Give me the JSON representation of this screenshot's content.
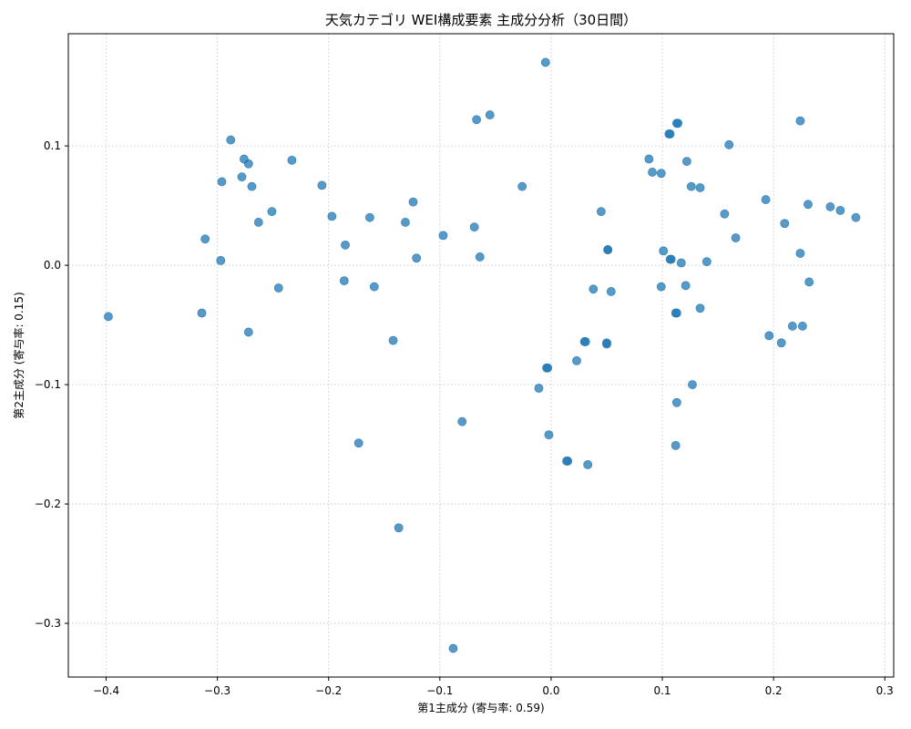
{
  "chart_data": {
    "type": "scatter",
    "title": "天気カテゴリ WEI構成要素 主成分分析（30日間）",
    "xlabel": "第1主成分 (寄与率: 0.59)",
    "ylabel": "第2主成分 (寄与率: 0.15)",
    "xlim": [
      -0.434,
      0.308
    ],
    "ylim": [
      -0.345,
      0.194
    ],
    "xticks": [
      -0.4,
      -0.3,
      -0.2,
      -0.1,
      0.0,
      0.1,
      0.2,
      0.3
    ],
    "xtick_labels": [
      "−0.4",
      "−0.3",
      "−0.2",
      "−0.1",
      "0.0",
      "0.1",
      "0.2",
      "0.3"
    ],
    "yticks": [
      -0.3,
      -0.2,
      -0.1,
      0.0,
      0.1
    ],
    "ytick_labels": [
      "−0.3",
      "−0.2",
      "−0.1",
      "0.0",
      "0.1"
    ],
    "grid": true,
    "color": "#1f77b4",
    "points": [
      [
        -0.398,
        -0.043
      ],
      [
        -0.314,
        -0.04
      ],
      [
        -0.311,
        0.022
      ],
      [
        -0.297,
        0.004
      ],
      [
        -0.296,
        0.07
      ],
      [
        -0.288,
        0.105
      ],
      [
        -0.278,
        0.074
      ],
      [
        -0.276,
        0.089
      ],
      [
        -0.272,
        0.085
      ],
      [
        -0.272,
        -0.056
      ],
      [
        -0.269,
        0.066
      ],
      [
        -0.263,
        0.036
      ],
      [
        -0.251,
        0.045
      ],
      [
        -0.245,
        -0.019
      ],
      [
        -0.233,
        0.088
      ],
      [
        -0.206,
        0.067
      ],
      [
        -0.197,
        0.041
      ],
      [
        -0.185,
        0.017
      ],
      [
        -0.186,
        -0.013
      ],
      [
        -0.173,
        -0.149
      ],
      [
        -0.163,
        0.04
      ],
      [
        -0.159,
        -0.018
      ],
      [
        -0.142,
        -0.063
      ],
      [
        -0.137,
        -0.22
      ],
      [
        -0.131,
        0.036
      ],
      [
        -0.124,
        0.053
      ],
      [
        -0.121,
        0.006
      ],
      [
        -0.097,
        0.025
      ],
      [
        -0.088,
        -0.321
      ],
      [
        -0.08,
        -0.131
      ],
      [
        -0.069,
        0.032
      ],
      [
        -0.067,
        0.122
      ],
      [
        -0.064,
        0.007
      ],
      [
        -0.055,
        0.126
      ],
      [
        -0.026,
        0.066
      ],
      [
        -0.011,
        -0.103
      ],
      [
        -0.005,
        0.17
      ],
      [
        -0.004,
        -0.086
      ],
      [
        -0.003,
        -0.086
      ],
      [
        -0.002,
        -0.142
      ],
      [
        0.014,
        -0.164
      ],
      [
        0.015,
        -0.164
      ],
      [
        0.023,
        -0.08
      ],
      [
        0.03,
        -0.064
      ],
      [
        0.031,
        -0.064
      ],
      [
        0.033,
        -0.167
      ],
      [
        0.038,
        -0.02
      ],
      [
        0.045,
        0.045
      ],
      [
        0.05,
        -0.066
      ],
      [
        0.051,
        0.013
      ],
      [
        0.051,
        0.013
      ],
      [
        0.05,
        -0.065
      ],
      [
        0.054,
        -0.022
      ],
      [
        0.088,
        0.089
      ],
      [
        0.091,
        0.078
      ],
      [
        0.099,
        0.077
      ],
      [
        0.099,
        -0.018
      ],
      [
        0.101,
        0.012
      ],
      [
        0.106,
        0.11
      ],
      [
        0.107,
        0.11
      ],
      [
        0.107,
        0.005
      ],
      [
        0.108,
        0.005
      ],
      [
        0.112,
        -0.151
      ],
      [
        0.112,
        -0.04
      ],
      [
        0.113,
        -0.04
      ],
      [
        0.113,
        0.119
      ],
      [
        0.114,
        0.119
      ],
      [
        0.113,
        -0.115
      ],
      [
        0.117,
        0.002
      ],
      [
        0.121,
        -0.017
      ],
      [
        0.122,
        0.087
      ],
      [
        0.126,
        0.066
      ],
      [
        0.127,
        -0.1
      ],
      [
        0.134,
        0.065
      ],
      [
        0.134,
        -0.036
      ],
      [
        0.14,
        0.003
      ],
      [
        0.156,
        0.043
      ],
      [
        0.16,
        0.101
      ],
      [
        0.166,
        0.023
      ],
      [
        0.193,
        0.055
      ],
      [
        0.196,
        -0.059
      ],
      [
        0.207,
        -0.065
      ],
      [
        0.21,
        0.035
      ],
      [
        0.217,
        -0.051
      ],
      [
        0.224,
        0.121
      ],
      [
        0.224,
        0.01
      ],
      [
        0.226,
        -0.051
      ],
      [
        0.231,
        0.051
      ],
      [
        0.232,
        -0.014
      ],
      [
        0.251,
        0.049
      ],
      [
        0.26,
        0.046
      ],
      [
        0.274,
        0.04
      ]
    ]
  }
}
